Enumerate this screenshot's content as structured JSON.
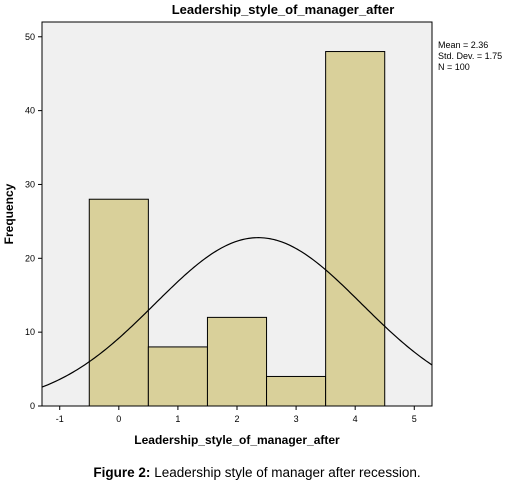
{
  "chart_data": {
    "type": "bar",
    "title": "Leadership_style_of_manager_after",
    "xlabel": "Leadership_style_of_manager_after",
    "ylabel": "Frequency",
    "categories": [
      "0",
      "1",
      "2",
      "3",
      "4"
    ],
    "values": [
      28,
      8,
      12,
      4,
      48
    ],
    "x_ticks": [
      "-1",
      "0",
      "1",
      "2",
      "3",
      "4",
      "5"
    ],
    "y_ticks": [
      "0",
      "10",
      "20",
      "30",
      "40",
      "50"
    ],
    "xlim": [
      -1.3,
      5.3
    ],
    "ylim": [
      0,
      52
    ],
    "grid": false,
    "bar_color": "#d9d09a",
    "plot_background": "#f0f0f0",
    "normal_curve": {
      "mean": 2.36,
      "std_dev": 1.75,
      "n": 100
    },
    "stats": {
      "mean": "Mean = 2.36",
      "std_dev": "Std. Dev. = 1.75",
      "n": "N = 100"
    }
  },
  "caption": {
    "label": "Figure 2:",
    "text": "Leadership style of manager after recession."
  }
}
